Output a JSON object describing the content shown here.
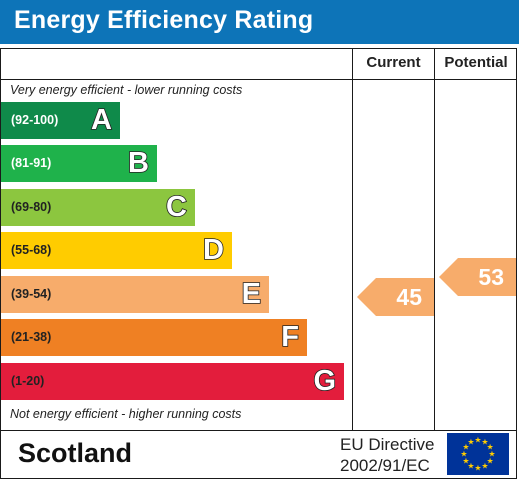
{
  "header": {
    "title": "Energy Efficiency Rating"
  },
  "columns": {
    "current": "Current",
    "potential": "Potential"
  },
  "captions": {
    "top": "Very energy efficient - lower running costs",
    "bottom": "Not energy efficient - higher running costs"
  },
  "bands": [
    {
      "range": "(92-100)",
      "letter": "A",
      "color": "#0f8a4a",
      "text_color": "#ffffff"
    },
    {
      "range": "(81-91)",
      "letter": "B",
      "color": "#1fb24b",
      "text_color": "#ffffff"
    },
    {
      "range": "(69-80)",
      "letter": "C",
      "color": "#8cc63f",
      "text_color": "#222222"
    },
    {
      "range": "(55-68)",
      "letter": "D",
      "color": "#ffcc00",
      "text_color": "#222222"
    },
    {
      "range": "(39-54)",
      "letter": "E",
      "color": "#f7ac6b",
      "text_color": "#222222"
    },
    {
      "range": "(21-38)",
      "letter": "F",
      "color": "#ef8023",
      "text_color": "#222222"
    },
    {
      "range": "(1-20)",
      "letter": "G",
      "color": "#e31d3c",
      "text_color": "#222222"
    }
  ],
  "ratings": {
    "current": {
      "value": "45",
      "color": "#f7ac6b"
    },
    "potential": {
      "value": "53",
      "color": "#f7ac6b"
    }
  },
  "footer": {
    "region": "Scotland",
    "directive_line1": "EU Directive",
    "directive_line2": "2002/91/EC"
  },
  "icons": {
    "eu_flag": "eu-flag-icon"
  }
}
